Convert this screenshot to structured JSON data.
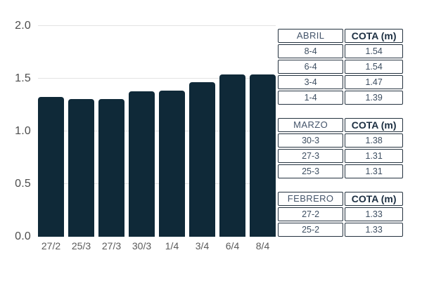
{
  "chart_data": {
    "type": "bar",
    "x": [
      "27/2",
      "25/3",
      "27/3",
      "30/3",
      "1/4",
      "3/4",
      "6/4",
      "8/4"
    ],
    "values": [
      1.33,
      1.31,
      1.31,
      1.38,
      1.39,
      1.47,
      1.54,
      1.54
    ],
    "title": "",
    "xlabel": "",
    "ylabel": "",
    "ylim": [
      0,
      2.0
    ],
    "yticks": [
      0.0,
      0.5,
      1.0,
      1.5,
      2.0
    ],
    "ytick_labels": [
      "0.0",
      "0.5",
      "1.0",
      "1.5",
      "2.0"
    ],
    "grid": true,
    "legend": false
  },
  "tables": [
    {
      "month_header": "ABRIL",
      "value_header": "COTA (m)",
      "rows": [
        {
          "date": "8-4",
          "cota": "1.54"
        },
        {
          "date": "6-4",
          "cota": "1.54"
        },
        {
          "date": "3-4",
          "cota": "1.47"
        },
        {
          "date": "1-4",
          "cota": "1.39"
        }
      ]
    },
    {
      "month_header": "MARZO",
      "value_header": "COTA (m)",
      "rows": [
        {
          "date": "30-3",
          "cota": "1.38"
        },
        {
          "date": "27-3",
          "cota": "1.31"
        },
        {
          "date": "25-3",
          "cota": "1.31"
        }
      ]
    },
    {
      "month_header": "FEBRERO",
      "value_header": "COTA (m)",
      "rows": [
        {
          "date": "27-2",
          "cota": "1.33"
        },
        {
          "date": "25-2",
          "cota": "1.33"
        }
      ]
    }
  ],
  "colors": {
    "bar": "#0f2938",
    "grid": "#e3e3e3",
    "table_border": "#24323f",
    "y_label": "#4d4d4d",
    "x_label": "#5a5a5a"
  }
}
